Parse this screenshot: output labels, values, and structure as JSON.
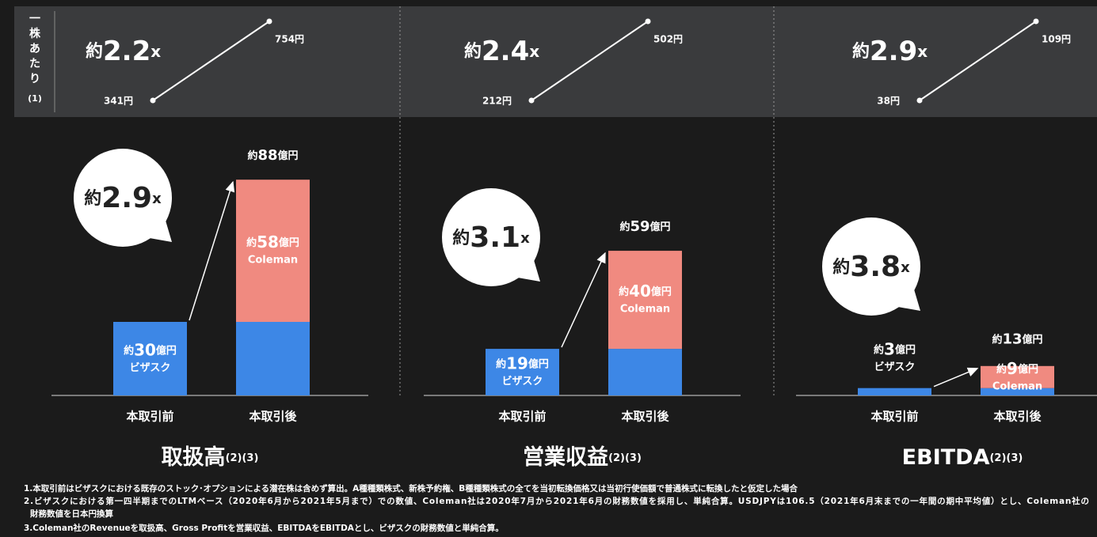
{
  "side_label": "一株あたり",
  "side_note": "(1)",
  "chart_data": [
    {
      "type": "bar",
      "title": "取扱高",
      "title_note": "(2)(3)",
      "categories": [
        "本取引前",
        "本取引後"
      ],
      "series": [
        {
          "name": "ビザスク",
          "color": "#3d87e6",
          "values": [
            30,
            30
          ],
          "value_labels": [
            "約30億円",
            null
          ]
        },
        {
          "name": "Coleman",
          "color": "#f08a80",
          "values": [
            null,
            58
          ],
          "value_labels": [
            null,
            "約58億円"
          ]
        }
      ],
      "totals": [
        null,
        88
      ],
      "total_labels": [
        null,
        "約88億円"
      ],
      "multiple_prefix": "約",
      "multiple": "2.9",
      "multiple_unit": "x",
      "per_share": {
        "prefix": "約",
        "multiple": "2.2",
        "unit": "x",
        "start": "341円",
        "end": "754円"
      }
    },
    {
      "type": "bar",
      "title": "営業収益",
      "title_note": "(2)(3)",
      "categories": [
        "本取引前",
        "本取引後"
      ],
      "series": [
        {
          "name": "ビザスク",
          "color": "#3d87e6",
          "values": [
            19,
            19
          ],
          "value_labels": [
            "約19億円",
            null
          ]
        },
        {
          "name": "Coleman",
          "color": "#f08a80",
          "values": [
            null,
            40
          ],
          "value_labels": [
            null,
            "約40億円"
          ]
        }
      ],
      "totals": [
        null,
        59
      ],
      "total_labels": [
        null,
        "約59億円"
      ],
      "multiple_prefix": "約",
      "multiple": "3.1",
      "multiple_unit": "x",
      "per_share": {
        "prefix": "約",
        "multiple": "2.4",
        "unit": "x",
        "start": "212円",
        "end": "502円"
      }
    },
    {
      "type": "bar",
      "title": "EBITDA",
      "title_note": "(2)(3)",
      "categories": [
        "本取引前",
        "本取引後"
      ],
      "series": [
        {
          "name": "ビザスク",
          "color": "#3d87e6",
          "values": [
            3,
            3
          ],
          "value_labels": [
            "約3億円",
            null
          ]
        },
        {
          "name": "Coleman",
          "color": "#f08a80",
          "values": [
            null,
            9
          ],
          "value_labels": [
            null,
            "約9億円"
          ]
        }
      ],
      "totals": [
        null,
        13
      ],
      "total_labels": [
        null,
        "約13億円"
      ],
      "multiple_prefix": "約",
      "multiple": "3.8",
      "multiple_unit": "x",
      "per_share": {
        "prefix": "約",
        "multiple": "2.9",
        "unit": "x",
        "start": "38円",
        "end": "109円"
      }
    }
  ],
  "footnotes": [
    "1.本取引前はビザスクにおける既存のストック･オプションによる潜在株は含めず算出。A種種類株式、新株予約権、B種種類株式の全てを当初転換価格又は当初行使価額で普通株式に転換したと仮定した場合",
    "2.ビザスクにおける第一四半期までのLTMベース（2020年6月から2021年5月まで）での数値、Coleman社は2020年7月から2021年6月の財務数値を採用し、単純合算。USDJPYは106.5（2021年6月末までの一年間の期中平均値）とし、Coleman社の",
    "財務数値を日本円換算",
    "3.Coleman社のRevenueを取扱高、Gross Profitを営業収益、EBITDAをEBITDAとし、ビザスクの財務数値と単純合算。"
  ]
}
